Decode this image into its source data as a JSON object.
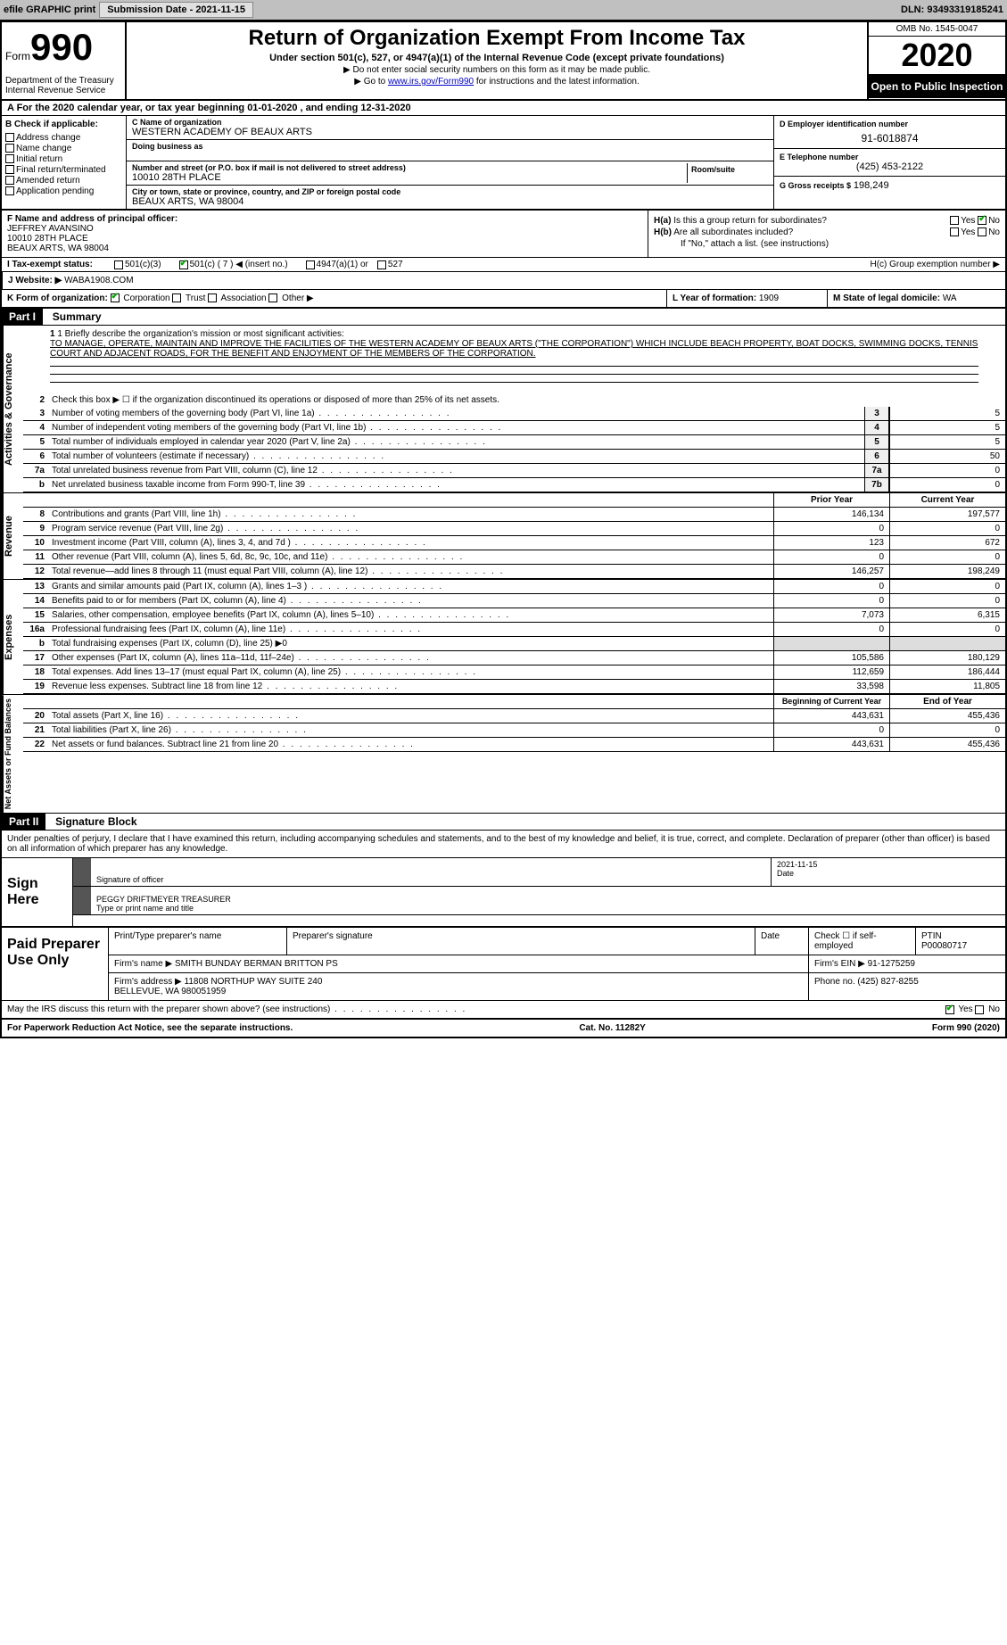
{
  "topbar": {
    "efile": "efile GRAPHIC print",
    "submission_label": "Submission Date - 2021-11-15",
    "dln": "DLN: 93493319185241"
  },
  "header": {
    "form_prefix": "Form",
    "form_number": "990",
    "dept": "Department of the Treasury\nInternal Revenue Service",
    "title": "Return of Organization Exempt From Income Tax",
    "subtitle": "Under section 501(c), 527, or 4947(a)(1) of the Internal Revenue Code (except private foundations)",
    "line1": "▶ Do not enter social security numbers on this form as it may be made public.",
    "line2_pre": "▶ Go to ",
    "line2_link": "www.irs.gov/Form990",
    "line2_post": " for instructions and the latest information.",
    "omb": "OMB No. 1545-0047",
    "year": "2020",
    "open": "Open to Public Inspection"
  },
  "period": "A For the 2020 calendar year, or tax year beginning 01-01-2020    , and ending 12-31-2020",
  "section_b": {
    "header": "B Check if applicable:",
    "items": [
      "Address change",
      "Name change",
      "Initial return",
      "Final return/terminated",
      "Amended return",
      "Application pending"
    ]
  },
  "section_c": {
    "name_label": "C Name of organization",
    "name": "WESTERN ACADEMY OF BEAUX ARTS",
    "dba_label": "Doing business as",
    "dba": "",
    "addr_label": "Number and street (or P.O. box if mail is not delivered to street address)",
    "room_label": "Room/suite",
    "addr": "10010 28TH PLACE",
    "city_label": "City or town, state or province, country, and ZIP or foreign postal code",
    "city": "BEAUX ARTS, WA  98004"
  },
  "section_d": {
    "label": "D Employer identification number",
    "value": "91-6018874"
  },
  "section_e": {
    "label": "E Telephone number",
    "value": "(425) 453-2122"
  },
  "section_g": {
    "label": "G Gross receipts $",
    "value": "198,249"
  },
  "section_f": {
    "label": "F  Name and address of principal officer:",
    "name": "JEFFREY AVANSINO",
    "addr1": "10010 28TH PLACE",
    "addr2": "BEAUX ARTS, WA  98004"
  },
  "section_h": {
    "ha": "H(a)  Is this a group return for subordinates?",
    "hb": "H(b)  Are all subordinates included?",
    "hb_note": "If \"No,\" attach a list. (see instructions)",
    "hc": "H(c)  Group exemption number ▶",
    "yes": "Yes",
    "no": "No"
  },
  "section_i": {
    "label": "I   Tax-exempt status:",
    "c3": "501(c)(3)",
    "c": "501(c) ( 7 ) ◀ (insert no.)",
    "a4947": "4947(a)(1) or",
    "s527": "527"
  },
  "section_j": {
    "label": "J   Website: ▶",
    "value": "WABA1908.COM"
  },
  "section_k": {
    "label": "K Form of organization:",
    "corp": "Corporation",
    "trust": "Trust",
    "assoc": "Association",
    "other": "Other ▶"
  },
  "section_l": {
    "label": "L Year of formation:",
    "value": "1909"
  },
  "section_m": {
    "label": "M State of legal domicile:",
    "value": "WA"
  },
  "part1": {
    "part": "Part I",
    "title": "Summary",
    "q1_label": "1  Briefly describe the organization's mission or most significant activities:",
    "mission": "TO MANAGE, OPERATE, MAINTAIN AND IMPROVE THE FACILITIES OF THE WESTERN ACADEMY OF BEAUX ARTS (\"THE CORPORATION\") WHICH INCLUDE BEACH PROPERTY, BOAT DOCKS, SWIMMING DOCKS, TENNIS COURT AND ADJACENT ROADS, FOR THE BENEFIT AND ENJOYMENT OF THE MEMBERS OF THE CORPORATION.",
    "q2": "Check this box ▶ ☐ if the organization discontinued its operations or disposed of more than 25% of its net assets.",
    "rows_gov": [
      {
        "n": "3",
        "d": "Number of voting members of the governing body (Part VI, line 1a)",
        "b": "3",
        "v": "5"
      },
      {
        "n": "4",
        "d": "Number of independent voting members of the governing body (Part VI, line 1b)",
        "b": "4",
        "v": "5"
      },
      {
        "n": "5",
        "d": "Total number of individuals employed in calendar year 2020 (Part V, line 2a)",
        "b": "5",
        "v": "5"
      },
      {
        "n": "6",
        "d": "Total number of volunteers (estimate if necessary)",
        "b": "6",
        "v": "50"
      },
      {
        "n": "7a",
        "d": "Total unrelated business revenue from Part VIII, column (C), line 12",
        "b": "7a",
        "v": "0"
      },
      {
        "n": "b",
        "d": "Net unrelated business taxable income from Form 990-T, line 39",
        "b": "7b",
        "v": "0"
      }
    ],
    "prior_hdr": "Prior Year",
    "current_hdr": "Current Year",
    "rows_rev": [
      {
        "n": "8",
        "d": "Contributions and grants (Part VIII, line 1h)",
        "p": "146,134",
        "c": "197,577"
      },
      {
        "n": "9",
        "d": "Program service revenue (Part VIII, line 2g)",
        "p": "0",
        "c": "0"
      },
      {
        "n": "10",
        "d": "Investment income (Part VIII, column (A), lines 3, 4, and 7d )",
        "p": "123",
        "c": "672"
      },
      {
        "n": "11",
        "d": "Other revenue (Part VIII, column (A), lines 5, 6d, 8c, 9c, 10c, and 11e)",
        "p": "0",
        "c": "0"
      },
      {
        "n": "12",
        "d": "Total revenue—add lines 8 through 11 (must equal Part VIII, column (A), line 12)",
        "p": "146,257",
        "c": "198,249"
      }
    ],
    "rows_exp": [
      {
        "n": "13",
        "d": "Grants and similar amounts paid (Part IX, column (A), lines 1–3 )",
        "p": "0",
        "c": "0"
      },
      {
        "n": "14",
        "d": "Benefits paid to or for members (Part IX, column (A), line 4)",
        "p": "0",
        "c": "0"
      },
      {
        "n": "15",
        "d": "Salaries, other compensation, employee benefits (Part IX, column (A), lines 5–10)",
        "p": "7,073",
        "c": "6,315"
      },
      {
        "n": "16a",
        "d": "Professional fundraising fees (Part IX, column (A), line 11e)",
        "p": "0",
        "c": "0"
      },
      {
        "n": "b",
        "d": "Total fundraising expenses (Part IX, column (D), line 25) ▶0",
        "p": "",
        "c": "",
        "shaded": true
      },
      {
        "n": "17",
        "d": "Other expenses (Part IX, column (A), lines 11a–11d, 11f–24e)",
        "p": "105,586",
        "c": "180,129"
      },
      {
        "n": "18",
        "d": "Total expenses. Add lines 13–17 (must equal Part IX, column (A), line 25)",
        "p": "112,659",
        "c": "186,444"
      },
      {
        "n": "19",
        "d": "Revenue less expenses. Subtract line 18 from line 12",
        "p": "33,598",
        "c": "11,805"
      }
    ],
    "beg_hdr": "Beginning of Current Year",
    "end_hdr": "End of Year",
    "rows_net": [
      {
        "n": "20",
        "d": "Total assets (Part X, line 16)",
        "p": "443,631",
        "c": "455,436"
      },
      {
        "n": "21",
        "d": "Total liabilities (Part X, line 26)",
        "p": "0",
        "c": "0"
      },
      {
        "n": "22",
        "d": "Net assets or fund balances. Subtract line 21 from line 20",
        "p": "443,631",
        "c": "455,436"
      }
    ],
    "side_gov": "Activities & Governance",
    "side_rev": "Revenue",
    "side_exp": "Expenses",
    "side_net": "Net Assets or Fund Balances"
  },
  "part2": {
    "part": "Part II",
    "title": "Signature Block",
    "decl": "Under penalties of perjury, I declare that I have examined this return, including accompanying schedules and statements, and to the best of my knowledge and belief, it is true, correct, and complete. Declaration of preparer (other than officer) is based on all information of which preparer has any knowledge.",
    "sign_here": "Sign Here",
    "sig_officer": "Signature of officer",
    "sig_date": "Date",
    "date_val": "2021-11-15",
    "name_title": "PEGGY DRIFTMEYER  TREASURER",
    "name_title_lbl": "Type or print name and title",
    "paid": "Paid Preparer Use Only",
    "prep_name_lbl": "Print/Type preparer's name",
    "prep_sig_lbl": "Preparer's signature",
    "date_lbl": "Date",
    "check_self": "Check ☐ if self-employed",
    "ptin_lbl": "PTIN",
    "ptin": "P00080717",
    "firm_name_lbl": "Firm's name    ▶",
    "firm_name": "SMITH BUNDAY BERMAN BRITTON PS",
    "firm_ein_lbl": "Firm's EIN ▶",
    "firm_ein": "91-1275259",
    "firm_addr_lbl": "Firm's address ▶",
    "firm_addr": "11808 NORTHUP WAY SUITE 240\nBELLEVUE, WA  980051959",
    "phone_lbl": "Phone no.",
    "phone": "(425) 827-8255",
    "discuss": "May the IRS discuss this return with the preparer shown above? (see instructions)",
    "yes": "Yes",
    "no": "No"
  },
  "footer": {
    "left": "For Paperwork Reduction Act Notice, see the separate instructions.",
    "mid": "Cat. No. 11282Y",
    "right": "Form 990 (2020)"
  }
}
